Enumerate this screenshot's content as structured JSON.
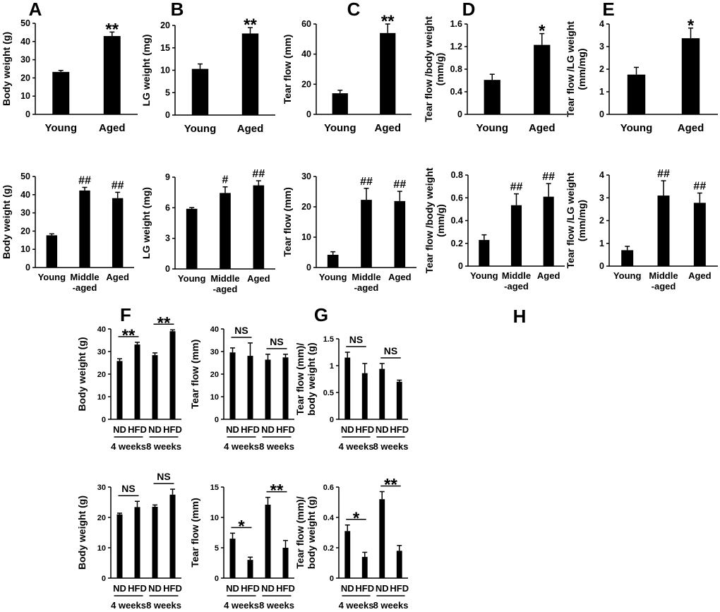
{
  "colors": {
    "bar": "#000000",
    "axis": "#000000",
    "background": "#ffffff"
  },
  "chart_data": [
    {
      "panel": "A",
      "type": "bar",
      "ylabel": [
        "Body weight (g)"
      ],
      "ylim": [
        0,
        50
      ],
      "yticks": [
        "0",
        "10",
        "20",
        "30",
        "40",
        "50"
      ],
      "categories": [
        [
          "Young"
        ],
        [
          "Aged"
        ]
      ],
      "values": [
        23.3,
        43
      ],
      "errors": [
        0.8,
        2.2
      ],
      "marks": [
        "",
        "**"
      ]
    },
    {
      "panel": "B",
      "type": "bar",
      "ylabel": [
        "LG weight (mg)"
      ],
      "ylim": [
        0,
        20
      ],
      "yticks": [
        "0",
        "5",
        "10",
        "15",
        "20"
      ],
      "categories": [
        [
          "Young"
        ],
        [
          "Aged"
        ]
      ],
      "values": [
        10.3,
        18.2
      ],
      "errors": [
        1.1,
        1.3
      ],
      "marks": [
        "",
        "**"
      ]
    },
    {
      "panel": "C",
      "type": "bar",
      "ylabel": [
        "Tear flow (mm)"
      ],
      "ylim": [
        0,
        60
      ],
      "yticks": [
        "0",
        "20",
        "40",
        "60"
      ],
      "categories": [
        [
          "Young"
        ],
        [
          "Aged"
        ]
      ],
      "values": [
        14,
        54
      ],
      "errors": [
        2,
        6
      ],
      "marks": [
        "",
        "**"
      ]
    },
    {
      "panel": "D",
      "type": "bar",
      "ylabel": [
        "Tear flow /body weight",
        "(mm/g)"
      ],
      "ylim": [
        0,
        1.6
      ],
      "yticks": [
        "0",
        "0.4",
        "0.8",
        "1.2",
        "1.6"
      ],
      "categories": [
        [
          "Young"
        ],
        [
          "Aged"
        ]
      ],
      "values": [
        0.61,
        1.23
      ],
      "errors": [
        0.1,
        0.2
      ],
      "marks": [
        "",
        "*"
      ]
    },
    {
      "panel": "E",
      "type": "bar",
      "ylabel": [
        "Tear flow /LG weight",
        "(mm/mg)"
      ],
      "ylim": [
        0,
        4
      ],
      "yticks": [
        "0",
        "1",
        "2",
        "3",
        "4"
      ],
      "categories": [
        [
          "Young"
        ],
        [
          "Aged"
        ]
      ],
      "values": [
        1.76,
        3.37
      ],
      "errors": [
        0.32,
        0.45
      ],
      "marks": [
        "",
        "*"
      ]
    },
    {
      "panel": "",
      "type": "bar",
      "ylabel": [
        "Body weight (g)"
      ],
      "ylim": [
        0,
        50
      ],
      "yticks": [
        "0",
        "10",
        "20",
        "30",
        "40",
        "50"
      ],
      "categories": [
        [
          "Young"
        ],
        [
          "Middle",
          "-aged"
        ],
        [
          "Aged"
        ]
      ],
      "values": [
        17.7,
        42.3,
        38.1
      ],
      "errors": [
        0.8,
        1.7,
        3.2
      ],
      "marks": [
        "",
        "##",
        "##"
      ]
    },
    {
      "panel": "",
      "type": "bar",
      "ylabel": [
        "LG weight (mg)"
      ],
      "ylim": [
        0,
        9
      ],
      "yticks": [
        "0",
        "3",
        "6",
        "9"
      ],
      "categories": [
        [
          "Young"
        ],
        [
          "Middle",
          "-aged"
        ],
        [
          "Aged"
        ]
      ],
      "values": [
        5.9,
        7.45,
        8.2
      ],
      "errors": [
        0.12,
        0.6,
        0.45
      ],
      "marks": [
        "",
        "#",
        "##"
      ]
    },
    {
      "panel": "",
      "type": "bar",
      "ylabel": [
        "Tear flow (mm)"
      ],
      "ylim": [
        0,
        30
      ],
      "yticks": [
        "0",
        "10",
        "20",
        "30"
      ],
      "categories": [
        [
          "Young"
        ],
        [
          "Middle",
          "-aged"
        ],
        [
          "Aged"
        ]
      ],
      "values": [
        4.2,
        22.3,
        21.9
      ],
      "errors": [
        1,
        3.8,
        3.2
      ],
      "marks": [
        "",
        "##",
        "##"
      ]
    },
    {
      "panel": "",
      "type": "bar",
      "ylabel": [
        "Tear flow /body weight",
        "(mm/g)"
      ],
      "ylim": [
        0,
        0.8
      ],
      "yticks": [
        "0",
        "0.2",
        "0.4",
        "0.6",
        "0.8"
      ],
      "categories": [
        [
          "Young"
        ],
        [
          "Middle",
          "-aged"
        ],
        [
          "Aged"
        ]
      ],
      "values": [
        0.23,
        0.535,
        0.61
      ],
      "errors": [
        0.045,
        0.1,
        0.115
      ],
      "marks": [
        "",
        "##",
        "##"
      ]
    },
    {
      "panel": "",
      "type": "bar",
      "ylabel": [
        "Tear flow /LG weight",
        "(mm/mg)"
      ],
      "ylim": [
        0,
        4
      ],
      "yticks": [
        "0",
        "1",
        "2",
        "3",
        "4"
      ],
      "categories": [
        [
          "Young"
        ],
        [
          "Middle",
          "-aged"
        ],
        [
          "Aged"
        ]
      ],
      "values": [
        0.7,
        3.1,
        2.78
      ],
      "errors": [
        0.17,
        0.65,
        0.43
      ],
      "marks": [
        "",
        "##",
        "##"
      ]
    },
    {
      "panel": "F",
      "type": "bar",
      "ylabel": [
        "Body weight (g)"
      ],
      "ylim": [
        0,
        40
      ],
      "yticks": [
        "0",
        "10",
        "20",
        "30",
        "40"
      ],
      "categories": [
        [
          "ND"
        ],
        [
          "HFD"
        ],
        [
          "ND"
        ],
        [
          "HFD"
        ]
      ],
      "groups": [
        "4 weeks",
        "8 weeks"
      ],
      "values": [
        25.8,
        33.1,
        28.4,
        39
      ],
      "errors": [
        1,
        1,
        1,
        0.6
      ],
      "brackets": [
        {
          "bars": [
            0,
            1
          ],
          "label": "**"
        },
        {
          "bars": [
            2,
            3
          ],
          "label": "**"
        }
      ]
    },
    {
      "panel": "G",
      "type": "bar",
      "ylabel": [
        "Tear flow (mm)"
      ],
      "ylim": [
        0,
        40
      ],
      "yticks": [
        "0",
        "10",
        "20",
        "30",
        "40"
      ],
      "categories": [
        [
          "ND"
        ],
        [
          "HFD"
        ],
        [
          "ND"
        ],
        [
          "HFD"
        ]
      ],
      "groups": [
        "4 weeks",
        "8 weeks"
      ],
      "values": [
        29.6,
        28.1,
        26.4,
        27.4
      ],
      "errors": [
        2,
        5.7,
        2.4,
        1.4
      ],
      "brackets": [
        {
          "bars": [
            0,
            1
          ],
          "label": "NS"
        },
        {
          "bars": [
            2,
            3
          ],
          "label": "NS"
        }
      ]
    },
    {
      "panel": "H",
      "type": "bar",
      "ylabel": [
        "Tear flow (mm)/",
        "body weight (g)"
      ],
      "ylim": [
        0,
        1.5
      ],
      "yticks": [
        "0",
        "0.5",
        "1",
        "1.5"
      ],
      "categories": [
        [
          "ND"
        ],
        [
          "HFD"
        ],
        [
          "ND"
        ],
        [
          "HFD"
        ]
      ],
      "groups": [
        "4 weeks",
        "8 weeks"
      ],
      "values": [
        1.15,
        0.86,
        0.94,
        0.7
      ],
      "errors": [
        0.1,
        0.18,
        0.1,
        0.03
      ],
      "brackets": [
        {
          "bars": [
            0,
            1
          ],
          "label": "NS"
        },
        {
          "bars": [
            2,
            3
          ],
          "label": "NS"
        }
      ]
    },
    {
      "panel": "",
      "type": "bar",
      "ylabel": [
        "Body weight (g)"
      ],
      "ylim": [
        0,
        30
      ],
      "yticks": [
        "0",
        "10",
        "20",
        "30"
      ],
      "categories": [
        [
          "ND"
        ],
        [
          "HFD"
        ],
        [
          "ND"
        ],
        [
          "HFD"
        ]
      ],
      "groups": [
        "4 weeks",
        "8 weeks"
      ],
      "values": [
        21,
        23.4,
        23.5,
        27.5
      ],
      "errors": [
        0.4,
        1.9,
        0.6,
        1.8
      ],
      "brackets": [
        {
          "bars": [
            0,
            1
          ],
          "label": "NS"
        },
        {
          "bars": [
            2,
            3
          ],
          "label": "NS"
        }
      ]
    },
    {
      "panel": "",
      "type": "bar",
      "ylabel": [
        "Tear flow (mm)"
      ],
      "ylim": [
        0,
        15
      ],
      "yticks": [
        "0",
        "5",
        "10",
        "15"
      ],
      "categories": [
        [
          "ND"
        ],
        [
          "HFD"
        ],
        [
          "ND"
        ],
        [
          "HFD"
        ]
      ],
      "groups": [
        "4 weeks",
        "8 weeks"
      ],
      "values": [
        6.5,
        3,
        12.1,
        5
      ],
      "errors": [
        0.9,
        0.45,
        1.2,
        1.2
      ],
      "brackets": [
        {
          "bars": [
            0,
            1
          ],
          "label": "*"
        },
        {
          "bars": [
            2,
            3
          ],
          "label": "**"
        }
      ]
    },
    {
      "panel": "",
      "type": "bar",
      "ylabel": [
        "Tear flow (mm)/",
        "body weight (g)"
      ],
      "ylim": [
        0,
        0.6
      ],
      "yticks": [
        "0",
        "0.2",
        "0.4",
        "0.6"
      ],
      "categories": [
        [
          "ND"
        ],
        [
          "HFD"
        ],
        [
          "ND"
        ],
        [
          "HFD"
        ]
      ],
      "groups": [
        "4 weeks",
        "8 weeks"
      ],
      "values": [
        0.31,
        0.14,
        0.52,
        0.18
      ],
      "errors": [
        0.04,
        0.03,
        0.05,
        0.035
      ],
      "brackets": [
        {
          "bars": [
            0,
            1
          ],
          "label": "*"
        },
        {
          "bars": [
            2,
            3
          ],
          "label": "**"
        }
      ]
    }
  ]
}
